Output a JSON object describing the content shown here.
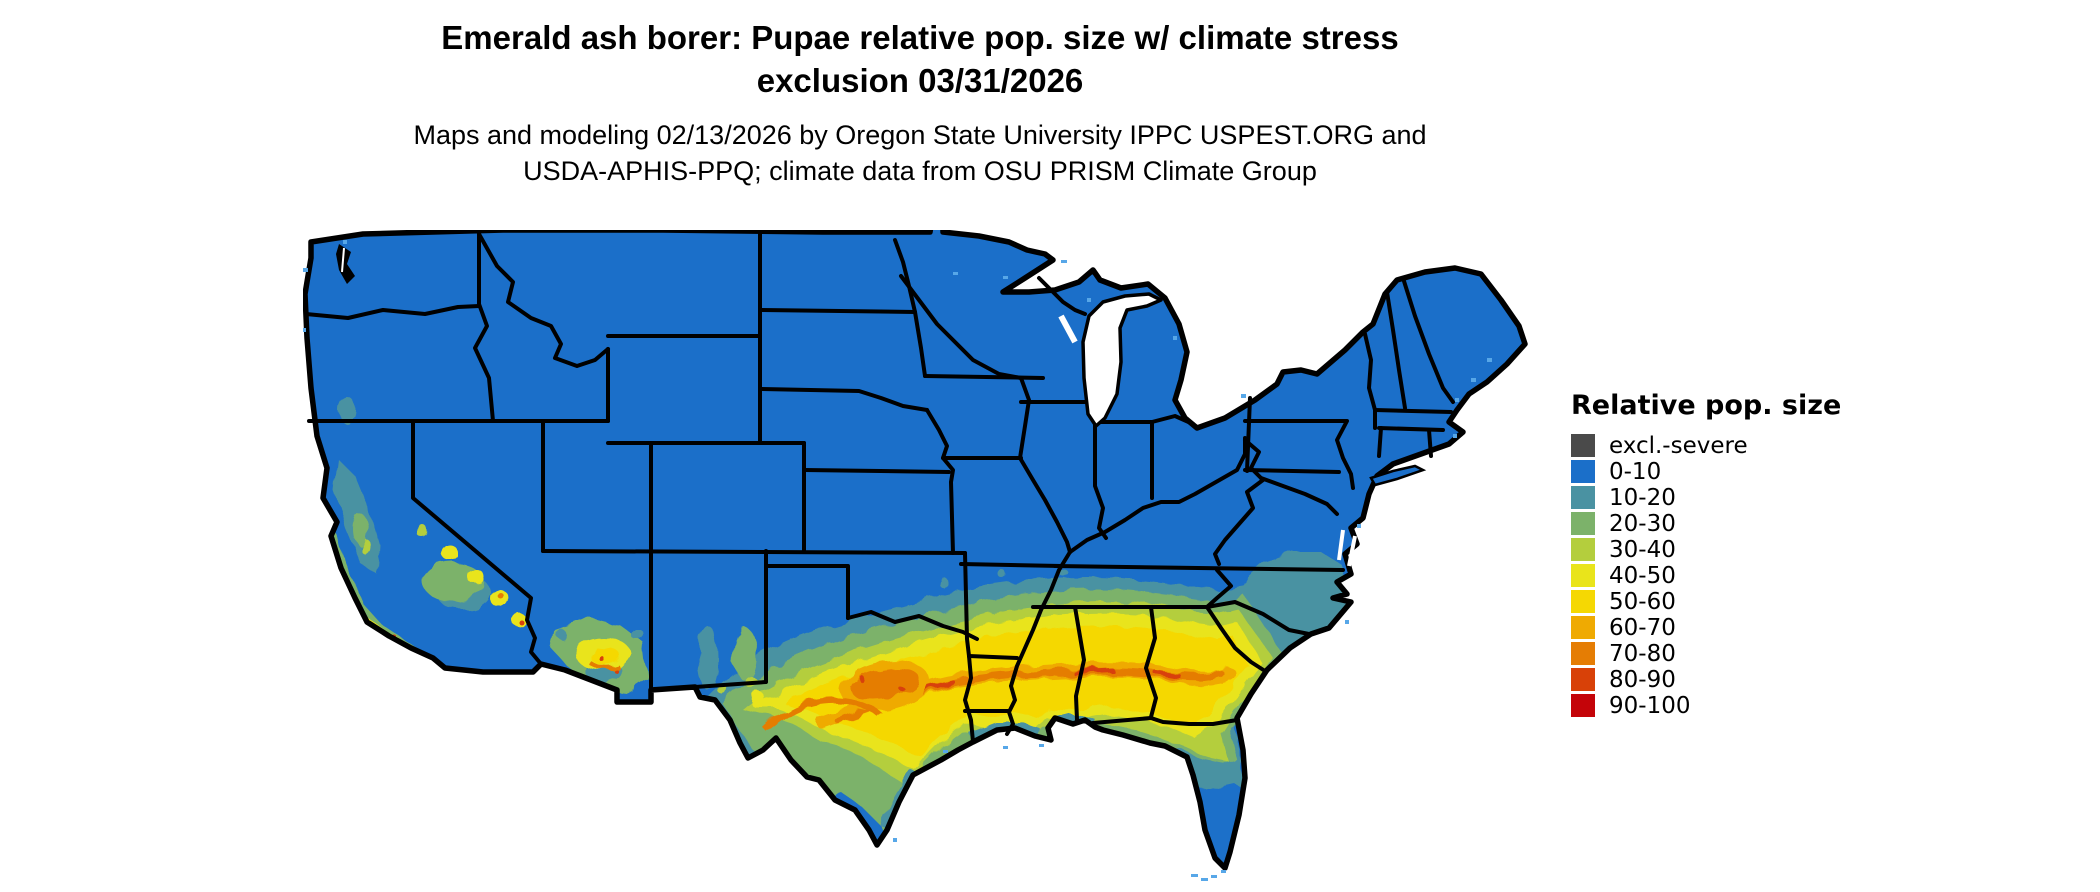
{
  "title": {
    "line1": "Emerald ash borer: Pupae relative pop. size w/ climate stress",
    "line2": "exclusion 03/31/2026"
  },
  "subtitle": {
    "line1": "Maps and modeling 02/13/2026 by Oregon State University IPPC USPEST.ORG and",
    "line2": "USDA-APHIS-PPQ; climate data from OSU PRISM Climate Group"
  },
  "legend": {
    "title": "Relative pop. size",
    "items": [
      {
        "label": "excl.-severe",
        "color": "#4a4a4a"
      },
      {
        "label": "0-10",
        "color": "#1b6fc9"
      },
      {
        "label": "10-20",
        "color": "#4a92a2"
      },
      {
        "label": "20-30",
        "color": "#7cb26a"
      },
      {
        "label": "30-40",
        "color": "#b4ce3d"
      },
      {
        "label": "40-50",
        "color": "#e9e41b"
      },
      {
        "label": "50-60",
        "color": "#f5d803"
      },
      {
        "label": "60-70",
        "color": "#efaa02"
      },
      {
        "label": "70-80",
        "color": "#e57d04"
      },
      {
        "label": "80-90",
        "color": "#d84108"
      },
      {
        "label": "90-100",
        "color": "#c40409"
      }
    ]
  },
  "map": {
    "region": "Contiguous United States",
    "layer": "Pupae relative population size raster with climate stress exclusion",
    "border_color": "#000000",
    "water_color": "#ffffff",
    "coastal_cell_color": "#57a7e8"
  }
}
